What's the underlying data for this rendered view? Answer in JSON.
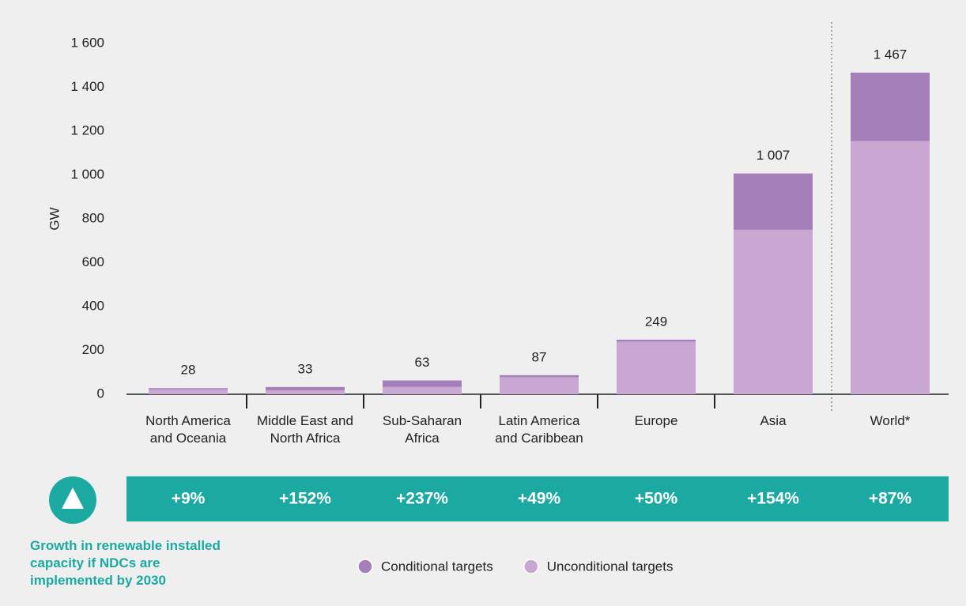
{
  "chart_data": {
    "type": "stacked-bar",
    "y_axis_label": "GW",
    "categories": [
      "North America and Oceania",
      "Middle East and North Africa",
      "Sub-Saharan Africa",
      "Latin America and Caribbean",
      "Europe",
      "Asia",
      "World*"
    ],
    "series": [
      {
        "name": "Unconditional targets",
        "color": "#c8a8d2",
        "values": [
          22,
          18,
          33,
          78,
          240,
          750,
          1155
        ]
      },
      {
        "name": "Conditional targets",
        "color": "#a57fba",
        "values": [
          6,
          15,
          30,
          9,
          9,
          257,
          312
        ]
      }
    ],
    "totals": {
      "values": [
        28,
        33,
        63,
        87,
        249,
        1007,
        1467
      ],
      "value_labels": [
        "28",
        "33",
        "63",
        "87",
        "249",
        "1 007",
        "1 467"
      ]
    },
    "ylim": [
      0,
      1600
    ],
    "yticks": [
      0,
      200,
      400,
      600,
      800,
      {
        "value": 1000,
        "label": "1 000"
      },
      {
        "value": 1200,
        "label": "1 200"
      },
      {
        "value": 1400,
        "label": "1 400"
      },
      {
        "value": 1600,
        "label": "1 600"
      }
    ],
    "growth": {
      "title": "Growth in renewable installed capacity if NDCs are implemented by 2030",
      "values": [
        9,
        152,
        237,
        49,
        50,
        154,
        87
      ],
      "value_labels": [
        "+9%",
        "+152%",
        "+237%",
        "+49%",
        "+50%",
        "+154%",
        "+87%"
      ],
      "color": "#1ba9a1"
    }
  }
}
